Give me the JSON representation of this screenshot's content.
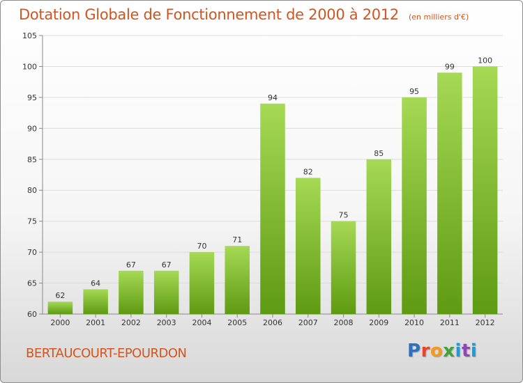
{
  "chart_data": {
    "type": "bar",
    "title": "Dotation Globale de Fonctionnement de 2000 à 2012",
    "subtitle": "(en milliers d'€)",
    "xlabel": "",
    "ylabel": "",
    "categories": [
      "2000",
      "2001",
      "2002",
      "2003",
      "2004",
      "2005",
      "2006",
      "2007",
      "2008",
      "2009",
      "2010",
      "2011",
      "2012"
    ],
    "values": [
      62,
      64,
      67,
      67,
      70,
      71,
      94,
      82,
      75,
      85,
      95,
      99,
      100
    ],
    "ylim": [
      60,
      105
    ],
    "yticks": [
      60,
      65,
      70,
      75,
      80,
      85,
      90,
      95,
      100,
      105
    ],
    "grid": true,
    "bar_color_top": "#a6d955",
    "bar_color_bottom": "#5e9a12"
  },
  "commune": "BERTAUCOURT-EPOURDON",
  "logo": {
    "text": "Proxiti"
  }
}
